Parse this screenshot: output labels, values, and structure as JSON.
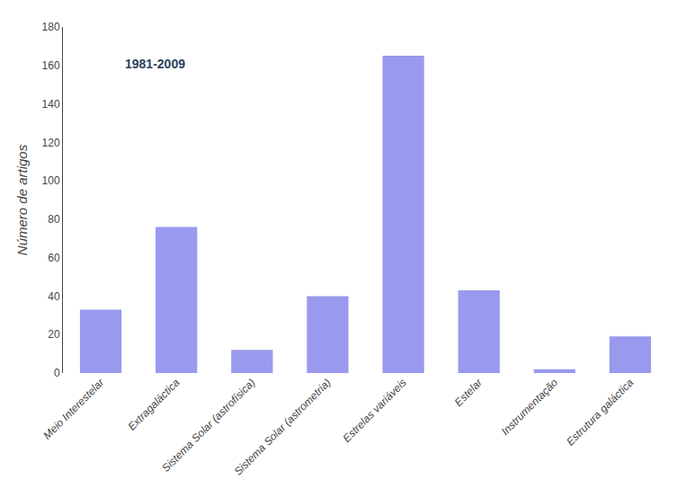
{
  "chart_data": {
    "type": "bar",
    "ylabel": "Número de artigos",
    "annotation": "1981-2009",
    "categories": [
      "Meio Interestelar",
      "Extragaláctica",
      "Sistema Solar (astrofísica)",
      "Sistema Solar (astrometria)",
      "Estrelas variáveis",
      "Estelar",
      "Instrumentação",
      "Estrutura galáctica"
    ],
    "values": [
      33,
      76,
      12,
      40,
      165,
      43,
      2,
      19
    ],
    "color": "#9999ee",
    "ylim": [
      0,
      180
    ],
    "yticks": [
      0,
      20,
      40,
      60,
      80,
      100,
      120,
      140,
      160,
      180
    ],
    "grid": false
  }
}
